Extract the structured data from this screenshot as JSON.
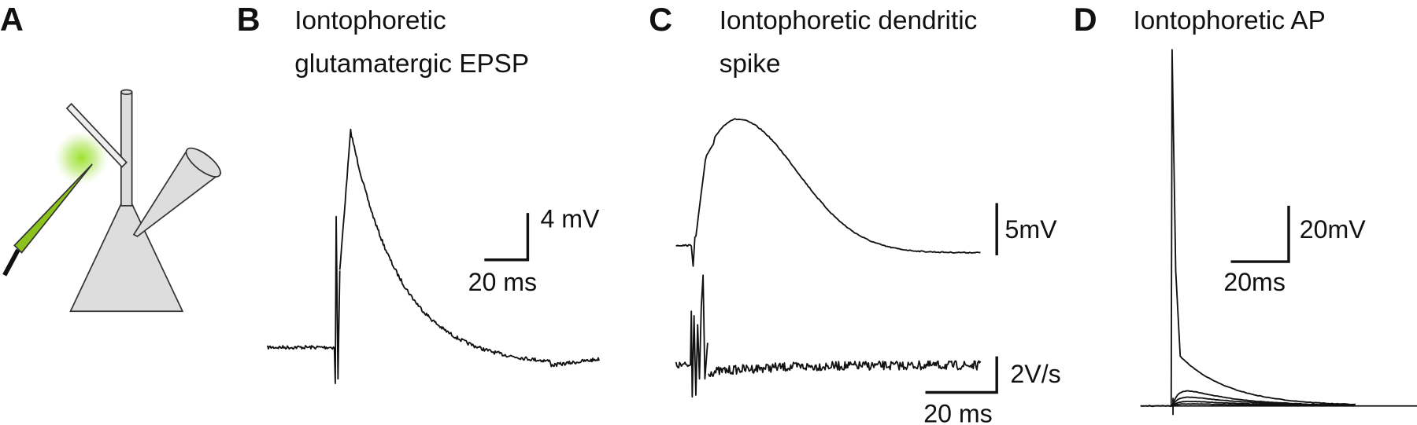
{
  "panels": [
    {
      "letter": "A"
    },
    {
      "letter": "B",
      "title": [
        "Iontophoretic",
        "glutamatergic EPSP"
      ],
      "scale": [
        "4 mV",
        "20 ms"
      ]
    },
    {
      "letter": "C",
      "title": [
        "Iontophoretic dendritic",
        "spike"
      ],
      "scale": [
        "5mV",
        "2V/s",
        "20 ms"
      ]
    },
    {
      "letter": "D",
      "title": [
        "Iontophoretic AP"
      ],
      "scale": [
        "20mV",
        "20ms"
      ]
    }
  ]
}
